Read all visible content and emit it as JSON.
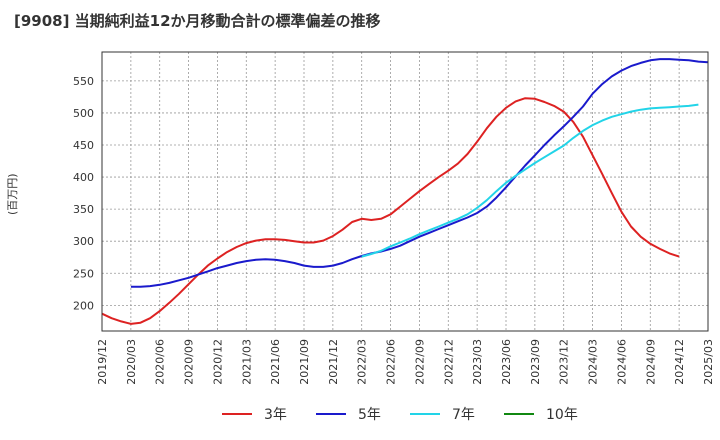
{
  "chart_data": {
    "type": "line",
    "title": "[9908]  当期純利益12か月移動合計の標準偏差の推移",
    "ylabel": "(百万円)",
    "xlabel": "",
    "ylim": [
      160,
      595
    ],
    "y_ticks": [
      200,
      250,
      300,
      350,
      400,
      450,
      500,
      550
    ],
    "x_ticks": [
      "2019/12",
      "2020/03",
      "2020/06",
      "2020/09",
      "2020/12",
      "2021/03",
      "2021/06",
      "2021/09",
      "2021/12",
      "2022/03",
      "2022/06",
      "2022/09",
      "2022/12",
      "2023/03",
      "2023/06",
      "2023/09",
      "2023/12",
      "2024/03",
      "2024/06",
      "2024/09",
      "2024/12",
      "2025/03"
    ],
    "grid": true,
    "legend_position": "bottom",
    "series": [
      {
        "name": "3年",
        "color": "#dd2222",
        "start_index": 0,
        "values": [
          187,
          180,
          175,
          171,
          173,
          180,
          191,
          204,
          218,
          233,
          248,
          262,
          273,
          283,
          291,
          297,
          301,
          303,
          303,
          302,
          300,
          298,
          298,
          301,
          308,
          318,
          330,
          335,
          333,
          335,
          342,
          354,
          366,
          378,
          389,
          400,
          410,
          421,
          436,
          455,
          476,
          494,
          508,
          518,
          523,
          522,
          517,
          511,
          502,
          486,
          463,
          434,
          405,
          375,
          346,
          323,
          307,
          296,
          288,
          281,
          276
        ]
      },
      {
        "name": "5年",
        "color": "#1a1acc",
        "start_index": 3,
        "values": [
          229,
          229,
          230,
          232,
          235,
          239,
          243,
          248,
          253,
          258,
          262,
          266,
          269,
          271,
          272,
          271,
          269,
          266,
          262,
          260,
          260,
          262,
          266,
          272,
          277,
          281,
          284,
          288,
          293,
          300,
          307,
          313,
          319,
          325,
          331,
          337,
          344,
          354,
          368,
          384,
          401,
          418,
          434,
          450,
          465,
          479,
          494,
          510,
          530,
          545,
          557,
          566,
          573,
          578,
          582,
          584,
          584,
          583,
          582,
          580,
          579
        ]
      },
      {
        "name": "7年",
        "color": "#22d4e8",
        "start_index": 27,
        "values": [
          276,
          280,
          285,
          292,
          298,
          304,
          311,
          317,
          323,
          329,
          335,
          342,
          352,
          364,
          378,
          391,
          402,
          412,
          422,
          431,
          440,
          449,
          461,
          472,
          481,
          488,
          494,
          498,
          502,
          505,
          507,
          508,
          509,
          510,
          511,
          513
        ]
      },
      {
        "name": "10年",
        "color": "#118811",
        "start_index": 0,
        "values": []
      }
    ]
  }
}
